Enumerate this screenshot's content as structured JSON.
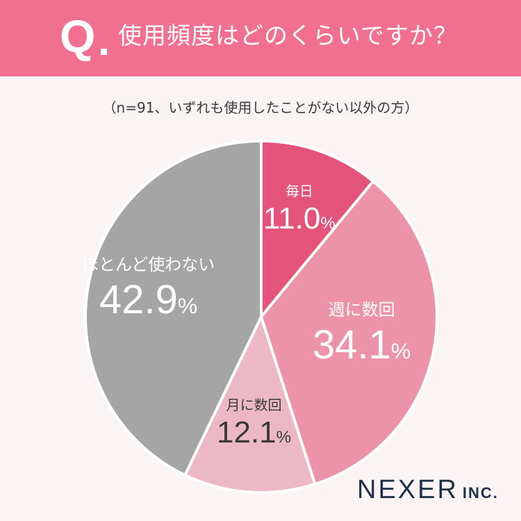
{
  "header": {
    "q_mark": "Q",
    "question": "使用頻度はどのくらいですか？"
  },
  "note": "（n=91、いずれも使用したことがない以外の方）",
  "logo": {
    "name": "NEXER",
    "suffix": "INC."
  },
  "colors": {
    "header": "#f2708f",
    "daily": "#e3537a",
    "weekly": "#ec93a9",
    "monthly": "#ecb8c6",
    "rarely": "#a5a5a5",
    "background": "#faf4f5"
  },
  "chart_data": {
    "type": "pie",
    "unit": "%",
    "slices": [
      {
        "label": "毎日",
        "value": 11.0,
        "value_text": "11.0",
        "color": "#e3537a"
      },
      {
        "label": "週に数回",
        "value": 34.1,
        "value_text": "34.1",
        "color": "#ec93a9"
      },
      {
        "label": "月に数回",
        "value": 12.1,
        "value_text": "12.1",
        "color": "#ecb8c6"
      },
      {
        "label": "ほとんど使わない",
        "value": 42.9,
        "value_text": "42.9",
        "color": "#a5a5a5"
      }
    ],
    "start": "12 o'clock",
    "direction": "clockwise"
  }
}
